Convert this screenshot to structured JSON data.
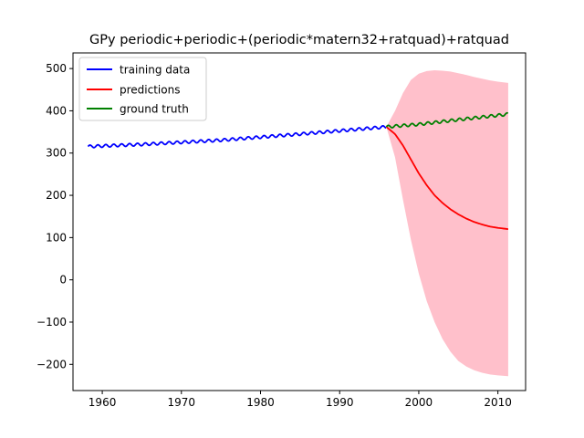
{
  "chart_data": {
    "type": "line",
    "title": "GPy periodic+periodic+(periodic*matern32+ratquad)+ratquad",
    "xlabel": "",
    "ylabel": "",
    "xlim": [
      1956.3,
      2013.5
    ],
    "ylim": [
      -262,
      537
    ],
    "xticks": [
      1960,
      1970,
      1980,
      1990,
      2000,
      2010
    ],
    "yticks": [
      -200,
      -100,
      0,
      100,
      200,
      300,
      400,
      500
    ],
    "ytick_labels": [
      "−200",
      "−100",
      "0",
      "100",
      "200",
      "300",
      "400",
      "500"
    ],
    "grid": false,
    "legend_position": "upper-left",
    "series": [
      {
        "name": "training data",
        "color": "#0000ff",
        "kind": "line",
        "trend": {
          "x": [
            1958.2,
            1965,
            1975,
            1985,
            1995.9
          ],
          "y": [
            315.5,
            320.5,
            330.5,
            345.0,
            362.0
          ]
        },
        "seasonal_amplitude": 3.2
      },
      {
        "name": "predictions",
        "color": "#ff0000",
        "kind": "line",
        "x": [
          1995.9,
          1997,
          1998,
          1999,
          2000,
          2001,
          2002,
          2003,
          2004,
          2005,
          2006,
          2007,
          2008,
          2009,
          2010,
          2011.3
        ],
        "y": [
          362,
          345,
          318,
          285,
          252,
          224,
          200,
          182,
          167,
          155,
          145,
          137,
          131,
          126,
          123,
          120
        ]
      },
      {
        "name": "ground truth",
        "color": "#008000",
        "kind": "line",
        "trend": {
          "x": [
            1995.9,
            2000,
            2005,
            2011.3
          ],
          "y": [
            362.0,
            368.0,
            379.0,
            392.0
          ]
        },
        "seasonal_amplitude": 3.2
      }
    ],
    "confidence_band": {
      "color": "#ffc0cb",
      "x": [
        1995.9,
        1997,
        1998,
        1999,
        2000,
        2001,
        2002,
        2003,
        2004,
        2005,
        2006,
        2007,
        2008,
        2009,
        2010,
        2011.3
      ],
      "upper": [
        362,
        400,
        442,
        473,
        488,
        494,
        496,
        495,
        493,
        489,
        485,
        480,
        476,
        472,
        469,
        466
      ],
      "lower": [
        362,
        290,
        190,
        95,
        15,
        -50,
        -100,
        -140,
        -170,
        -192,
        -205,
        -214,
        -220,
        -224,
        -226,
        -228
      ]
    }
  }
}
